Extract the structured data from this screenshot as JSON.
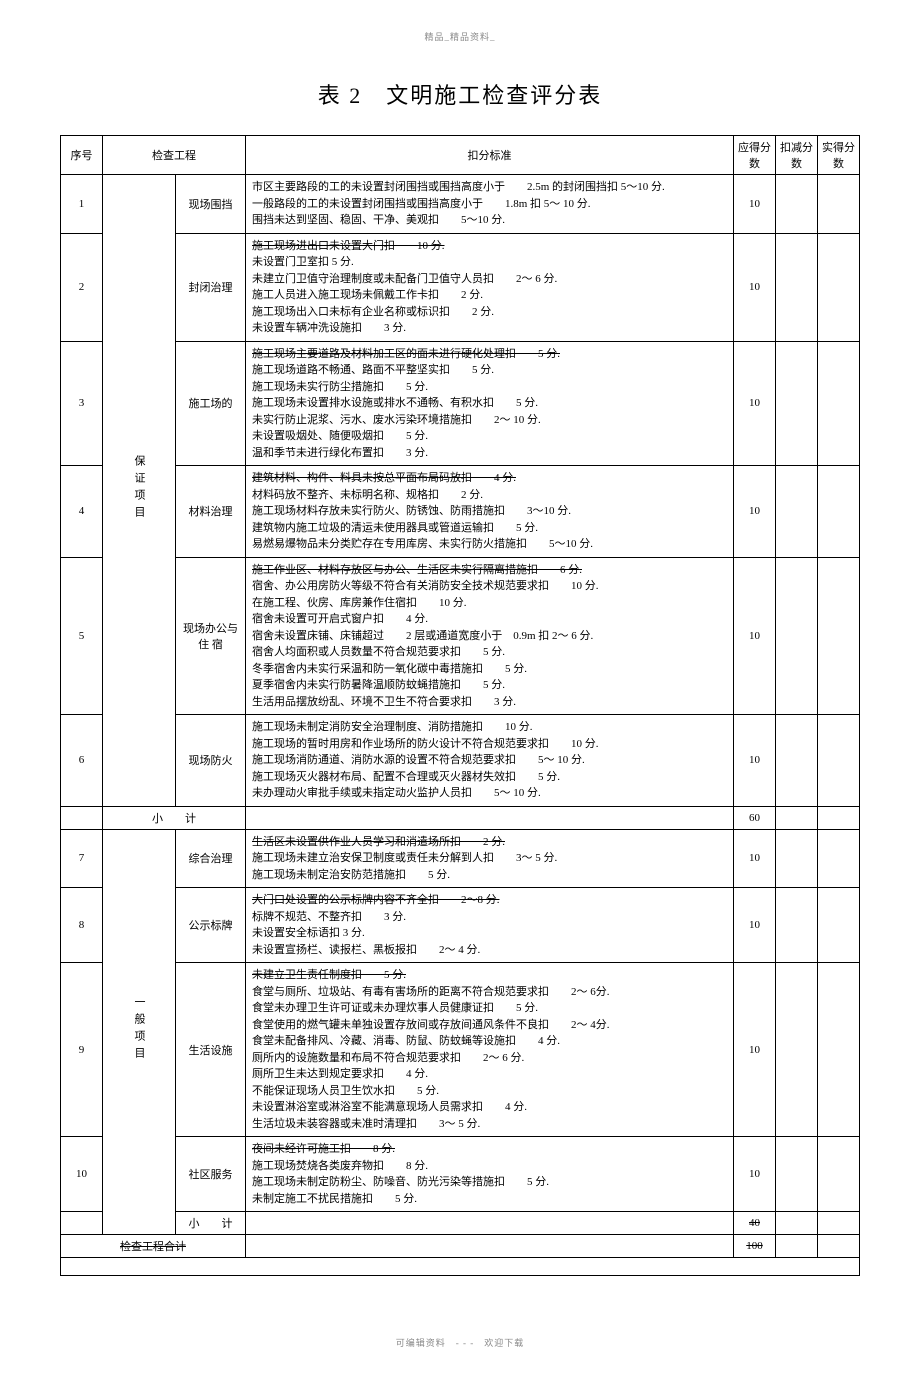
{
  "header_note": "精品_精品资料_",
  "footer_note": "可编辑资料　- - -　欢迎下载",
  "title": "表 2　文明施工检查评分表",
  "columns": {
    "seq": "序号",
    "proj": "检查工程",
    "std": "扣分标准",
    "should": "应得分数",
    "deduct": "扣减分数",
    "actual": "实得分数"
  },
  "category1": "保证项目",
  "category2": "一般项目",
  "subtotal_label": "小　　计",
  "grand_label": "检查工程合计",
  "rows": [
    {
      "seq": "1",
      "item": "现场围挡",
      "std": "市区主要路段的工的未设置封闭围挡或围挡高度小于　　2.5m 的封闭围挡扣 5～10 分.\n一般路段的工的未设置封闭围挡或围挡高度小于　　1.8m 扣 5～ 10 分.\n围挡未达到坚固、稳固、干净、美观扣　　5～10 分.",
      "score": "10"
    },
    {
      "seq": "2",
      "item": "封闭治理",
      "std_pre": "施工现场进出口未设置大门扣　　10 分.",
      "std": "未设置门卫室扣  5 分.\n未建立门卫值守治理制度或未配备门卫值守人员扣　　2～ 6 分.\n施工人员进入施工现场未佩戴工作卡扣　　2 分.\n施工现场出入口未标有企业名称或标识扣　　2 分.\n未设置车辆冲洗设施扣　　3 分.",
      "score": "10"
    },
    {
      "seq": "3",
      "item": "施工场的",
      "std_pre": "施工现场主要道路及材料加工区的面未进行硬化处理扣　　5 分.",
      "std": "施工现场道路不畅通、路面不平整坚实扣　　5 分.\n施工现场未实行防尘措施扣　　5 分.\n施工现场未设置排水设施或排水不通畅、有积水扣　　5 分.\n未实行防止泥浆、污水、废水污染环境措施扣　　2～ 10 分.\n未设置吸烟处、随便吸烟扣　　5 分.\n温和季节未进行绿化布置扣　　3 分.",
      "score": "10"
    },
    {
      "seq": "4",
      "item": "材料治理",
      "std_pre": "建筑材料、构件、料具未按总平面布局码放扣　　4 分.",
      "std": "材料码放不整齐、未标明名称、规格扣　　2 分.\n施工现场材料存放未实行防火、防锈蚀、防雨措施扣　　3～10 分.\n建筑物内施工垃圾的清运未使用器具或管道运输扣　　5 分.\n易燃易爆物品未分类贮存在专用库房、未实行防火措施扣　　5～10 分.",
      "score": "10"
    },
    {
      "seq": "5",
      "item": "现场办公与 住 宿",
      "std_pre": "施工作业区、材料存放区与办公、生活区未实行隔离措施扣　　6 分.",
      "std": "宿舍、办公用房防火等级不符合有关消防安全技术规范要求扣　　10 分.\n在施工程、伙房、库房兼作住宿扣　　10 分.\n宿舍未设置可开启式窗户扣　　4 分.\n宿舍未设置床铺、床铺超过　　2 层或通道宽度小于　0.9m 扣 2～ 6 分.\n宿舍人均面积或人员数量不符合规范要求扣　　5 分.\n冬季宿舍内未实行采温和防一氧化碳中毒措施扣　　5 分.\n夏季宿舍内未实行防暑降温顺防蚊蝇措施扣　　5 分.\n生活用品摆放纷乱、环境不卫生不符合要求扣　　3 分.",
      "score": "10"
    },
    {
      "seq": "6",
      "item": "现场防火",
      "std": "施工现场未制定消防安全治理制度、消防措施扣　　10 分.\n施工现场的暂时用房和作业场所的防火设计不符合规范要求扣　　10 分.\n施工现场消防通道、消防水源的设置不符合规范要求扣　　5～ 10 分.\n施工现场灭火器材布局、配置不合理或灭火器材失效扣　　5 分.\n未办理动火审批手续或未指定动火监护人员扣　　5～ 10 分.",
      "score": "10"
    }
  ],
  "subtotal1": "60",
  "rows2": [
    {
      "seq": "7",
      "item": "综合治理",
      "std_pre": "生活区未设置供作业人员学习和消遣场所扣　　2 分.",
      "std": "施工现场未建立治安保卫制度或责任未分解到人扣　　3～ 5 分.\n施工现场未制定治安防范措施扣　　5 分.",
      "score": "10"
    },
    {
      "seq": "8",
      "item": "公示标牌",
      "std_pre": "大门口处设置的公示标牌内容不齐全扣　　2～8 分.",
      "std": "标牌不规范、不整齐扣　　3 分.\n未设置安全标语扣 3 分.\n未设置宣扬栏、读报栏、黑板报扣　　2～ 4 分.",
      "score": "10"
    },
    {
      "seq": "9",
      "item": "生活设施",
      "std_pre": "未建立卫生责任制度扣　　5 分.",
      "std": "食堂与厕所、垃圾站、有毒有害场所的距离不符合规范要求扣　　2～ 6分.\n食堂未办理卫生许可证或未办理炊事人员健康证扣　　5 分.\n食堂使用的燃气罐未单独设置存放间或存放间通风条件不良扣　　2～ 4分.\n食堂未配备排风、冷藏、消毒、防鼠、防蚊蝇等设施扣　　4 分.\n厕所内的设施数量和布局不符合规范要求扣　　2～ 6 分.\n厕所卫生未达到规定要求扣　　4 分.\n不能保证现场人员卫生饮水扣　　5 分.\n未设置淋浴室或淋浴室不能满意现场人员需求扣　　4 分.\n生活垃圾未装容器或未准时清理扣　　3～ 5 分.",
      "score": "10"
    },
    {
      "seq": "10",
      "item": "社区服务",
      "std_pre": "夜间未经许可施工扣　　8 分.",
      "std": "施工现场焚烧各类废弃物扣　　8 分.\n施工现场未制定防粉尘、防噪音、防光污染等措施扣　　5 分.\n未制定施工不扰民措施扣　　5 分.",
      "score": "10"
    }
  ],
  "subtotal2": "40",
  "grand_total": "100"
}
